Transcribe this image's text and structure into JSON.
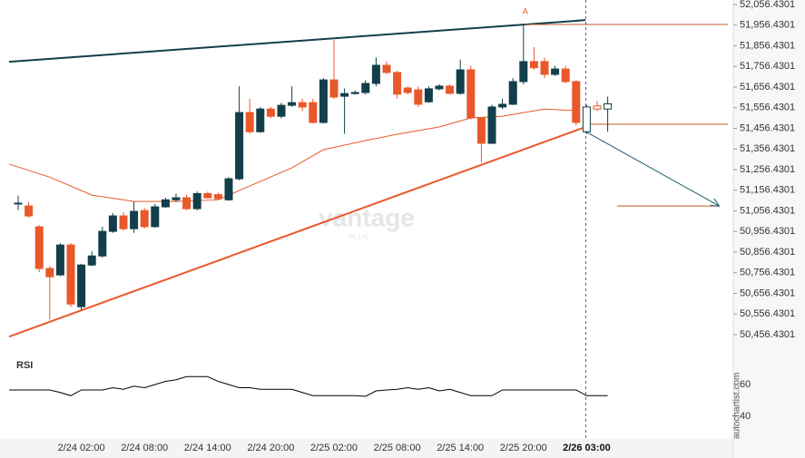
{
  "chart_data": {
    "type": "candlestick",
    "up_color": "#123f4a",
    "down_color": "#e8582a",
    "hollow_from": 54,
    "categories": [
      null,
      null,
      null,
      null,
      null,
      null,
      "2/24 02:00",
      null,
      null,
      null,
      null,
      null,
      "2/24 08:00",
      null,
      null,
      null,
      null,
      null,
      "2/24 14:00",
      null,
      null,
      null,
      null,
      null,
      "2/24 20:00",
      null,
      null,
      null,
      null,
      null,
      "2/25 02:00",
      null,
      null,
      null,
      null,
      null,
      "2/25 08:00",
      null,
      null,
      null,
      null,
      null,
      "2/25 14:00",
      null,
      null,
      null,
      null,
      null,
      "2/25 20:00",
      null,
      null,
      null,
      null,
      null,
      "2/26 03:00",
      null,
      null
    ],
    "open": [
      51094,
      51080,
      50979,
      50777,
      50746,
      50891,
      50592,
      50794,
      50838,
      50957,
      51032,
      50970,
      51058,
      50980,
      51076,
      51110,
      51120,
      51067,
      51140,
      51135,
      51110,
      51212,
      51533,
      51440,
      51550,
      51515,
      51568,
      51581,
      51581,
      51485,
      51691,
      51612,
      51625,
      51630,
      51674,
      51762,
      51727,
      51652,
      51643,
      51585,
      51648,
      51661,
      51626,
      51740,
      51507,
      51384,
      51560,
      51573,
      51683,
      51780,
      51780,
      51718,
      51744,
      51683,
      51440,
      51565,
      51550
    ],
    "high": [
      51130,
      51100,
      50988,
      50790,
      50900,
      50900,
      50800,
      50860,
      50980,
      51045,
      51050,
      51100,
      51070,
      51090,
      51120,
      51140,
      51135,
      51150,
      51150,
      51145,
      51220,
      51660,
      51600,
      51560,
      51560,
      51580,
      51660,
      51600,
      51600,
      51700,
      51885,
      51650,
      51640,
      51690,
      51800,
      51780,
      51735,
      51660,
      51660,
      51660,
      51670,
      51670,
      51790,
      51760,
      51510,
      51570,
      51600,
      51700,
      51955,
      51850,
      51800,
      51760,
      51760,
      51690,
      51570,
      51590,
      51610
    ],
    "low": [
      51060,
      51024,
      50759,
      50530,
      50740,
      50590,
      50575,
      50788,
      50830,
      50950,
      50960,
      50950,
      50970,
      50975,
      51070,
      51100,
      51060,
      51060,
      51115,
      51110,
      51105,
      51205,
      51430,
      51435,
      51505,
      51505,
      51560,
      51540,
      51480,
      51480,
      51600,
      51430,
      51620,
      51620,
      51660,
      51720,
      51600,
      51620,
      51560,
      51580,
      51640,
      51620,
      51620,
      51500,
      51290,
      51380,
      51550,
      51570,
      51670,
      51740,
      51700,
      51710,
      51675,
      51470,
      51430,
      51540,
      51440
    ],
    "close": [
      51094,
      51032,
      50777,
      50737,
      50891,
      50605,
      50794,
      50838,
      50957,
      51032,
      50970,
      51054,
      50980,
      51076,
      51110,
      51120,
      51067,
      51140,
      51120,
      51115,
      51212,
      51533,
      51440,
      51550,
      51515,
      51568,
      51581,
      51560,
      51485,
      51691,
      51608,
      51625,
      51630,
      51674,
      51762,
      51727,
      51622,
      51630,
      51573,
      51648,
      51661,
      51626,
      51740,
      51507,
      51384,
      51560,
      51573,
      51683,
      51780,
      51750,
      51718,
      51744,
      51683,
      51485,
      51560,
      51550,
      51575
    ],
    "ma": {
      "x": [
        -0.86,
        3,
        7,
        11,
        15,
        19,
        22,
        26,
        29,
        33,
        36,
        40,
        43,
        46,
        50,
        53
      ],
      "values": [
        51283,
        51220,
        51133,
        51102,
        51102,
        51110,
        51177,
        51265,
        51353,
        51397,
        51428,
        51463,
        51507,
        51515,
        51550,
        51542
      ]
    },
    "upper_line": {
      "x": [
        -0.86,
        53.9
      ],
      "values": [
        51779,
        51981
      ]
    },
    "lower_line": {
      "x": [
        -0.86,
        53.9
      ],
      "values": [
        50447,
        51463
      ]
    },
    "level_top": {
      "x": [
        48.1,
        67.4
      ],
      "values": [
        51960,
        51960
      ]
    },
    "level_mid": {
      "x": [
        53.9,
        67.4
      ],
      "values": [
        51476,
        51476
      ]
    },
    "level_target": {
      "x": [
        56.9,
        66.6
      ],
      "values": [
        51080,
        51080
      ]
    },
    "arrow": {
      "x": [
        53.9,
        66.6
      ],
      "values": [
        51441,
        51080
      ]
    },
    "marker_label": "A",
    "marker_x": 48,
    "marker_value": 52020,
    "ylim": [
      50456.4301,
      52056.4301
    ],
    "yticks": [
      {
        "value": 52056.4301,
        "label": "52,056.4301"
      },
      {
        "value": 51956.4301,
        "label": "51,956.4301"
      },
      {
        "value": 51856.4301,
        "label": "51,856.4301"
      },
      {
        "value": 51756.4301,
        "label": "51,756.4301"
      },
      {
        "value": 51656.4301,
        "label": "51,656.4301"
      },
      {
        "value": 51556.4301,
        "label": "51,556.4301"
      },
      {
        "value": 51456.4301,
        "label": "51,456.4301"
      },
      {
        "value": 51356.4301,
        "label": "51,356.4301"
      },
      {
        "value": 51256.4301,
        "label": "51,256.4301"
      },
      {
        "value": 51156.4301,
        "label": "51,156.4301"
      },
      {
        "value": 51056.4301,
        "label": "51,056.4301"
      },
      {
        "value": 50956.4301,
        "label": "50,956.4301"
      },
      {
        "value": 50856.4301,
        "label": "50,856.4301"
      },
      {
        "value": 50756.4301,
        "label": "50,756.4301"
      },
      {
        "value": 50656.4301,
        "label": "50,656.4301"
      },
      {
        "value": 50556.4301,
        "label": "50,556.4301"
      },
      {
        "value": 50456.4301,
        "label": "50,456.4301"
      }
    ],
    "rsi": {
      "title": "RSI",
      "color": "#000000",
      "values": [
        56.6,
        56.6,
        56.6,
        56.6,
        55,
        53,
        56.6,
        56.6,
        56.6,
        58,
        57,
        59,
        58,
        60,
        62,
        63,
        65,
        65,
        65,
        62,
        60,
        58,
        58,
        57,
        57,
        57,
        57,
        55,
        53,
        53,
        53,
        53,
        53,
        52.6,
        56,
        56.6,
        57,
        58,
        57,
        58,
        56,
        57,
        55,
        53,
        53,
        53,
        56.6,
        56.6,
        56.6,
        56.6,
        56.6,
        56.6,
        56.6,
        56.6,
        53,
        53,
        53
      ],
      "ylim": [
        28,
        76.6
      ],
      "yticks": [
        60,
        40
      ]
    },
    "watermark": "vantage",
    "watermark_sub": "PLUS",
    "credit": "autochartist.com"
  }
}
